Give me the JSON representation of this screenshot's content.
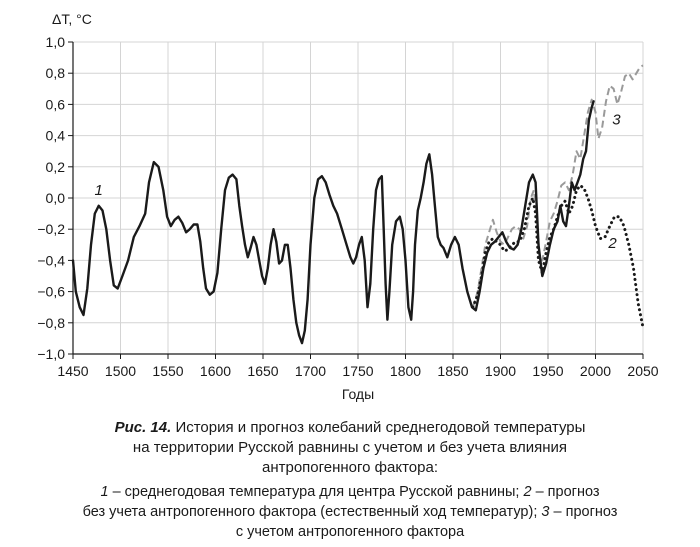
{
  "chart_data": {
    "type": "line",
    "ylabel": "ΔT, °C",
    "xlabel": "Годы",
    "xlim": [
      1450,
      2050
    ],
    "ylim": [
      -1.0,
      1.0
    ],
    "x_ticks": [
      "1450",
      "1500",
      "1550",
      "1600",
      "1650",
      "1700",
      "1750",
      "1800",
      "1850",
      "1900",
      "1950",
      "2000",
      "2050"
    ],
    "y_ticks": [
      "1,0",
      "0,8",
      "0,6",
      "0,4",
      "0,2",
      "0,0",
      "−0,2",
      "−0,4",
      "−0,6",
      "−0,8",
      "−1,0"
    ],
    "series": [
      {
        "label": "1",
        "style": "solid",
        "color": "#1a1a1a",
        "points": [
          [
            1450,
            -0.4
          ],
          [
            1453,
            -0.6
          ],
          [
            1457,
            -0.7
          ],
          [
            1461,
            -0.75
          ],
          [
            1465,
            -0.58
          ],
          [
            1469,
            -0.3
          ],
          [
            1473,
            -0.1
          ],
          [
            1477,
            -0.05
          ],
          [
            1481,
            -0.08
          ],
          [
            1485,
            -0.2
          ],
          [
            1489,
            -0.4
          ],
          [
            1493,
            -0.56
          ],
          [
            1497,
            -0.58
          ],
          [
            1502,
            -0.5
          ],
          [
            1508,
            -0.4
          ],
          [
            1514,
            -0.25
          ],
          [
            1520,
            -0.18
          ],
          [
            1526,
            -0.1
          ],
          [
            1530,
            0.1
          ],
          [
            1535,
            0.23
          ],
          [
            1540,
            0.2
          ],
          [
            1545,
            0.05
          ],
          [
            1549,
            -0.12
          ],
          [
            1553,
            -0.18
          ],
          [
            1557,
            -0.14
          ],
          [
            1561,
            -0.12
          ],
          [
            1565,
            -0.16
          ],
          [
            1569,
            -0.22
          ],
          [
            1573,
            -0.2
          ],
          [
            1577,
            -0.17
          ],
          [
            1581,
            -0.17
          ],
          [
            1584,
            -0.28
          ],
          [
            1587,
            -0.45
          ],
          [
            1590,
            -0.58
          ],
          [
            1594,
            -0.62
          ],
          [
            1598,
            -0.6
          ],
          [
            1602,
            -0.48
          ],
          [
            1606,
            -0.2
          ],
          [
            1610,
            0.05
          ],
          [
            1614,
            0.13
          ],
          [
            1618,
            0.15
          ],
          [
            1622,
            0.12
          ],
          [
            1625,
            -0.05
          ],
          [
            1628,
            -0.18
          ],
          [
            1631,
            -0.3
          ],
          [
            1634,
            -0.38
          ],
          [
            1637,
            -0.32
          ],
          [
            1640,
            -0.25
          ],
          [
            1643,
            -0.3
          ],
          [
            1646,
            -0.4
          ],
          [
            1649,
            -0.5
          ],
          [
            1652,
            -0.55
          ],
          [
            1655,
            -0.45
          ],
          [
            1658,
            -0.3
          ],
          [
            1661,
            -0.2
          ],
          [
            1664,
            -0.28
          ],
          [
            1667,
            -0.42
          ],
          [
            1670,
            -0.4
          ],
          [
            1673,
            -0.3
          ],
          [
            1676,
            -0.3
          ],
          [
            1679,
            -0.45
          ],
          [
            1682,
            -0.65
          ],
          [
            1685,
            -0.8
          ],
          [
            1688,
            -0.88
          ],
          [
            1691,
            -0.93
          ],
          [
            1694,
            -0.85
          ],
          [
            1697,
            -0.65
          ],
          [
            1700,
            -0.3
          ],
          [
            1704,
            0.0
          ],
          [
            1708,
            0.12
          ],
          [
            1712,
            0.14
          ],
          [
            1716,
            0.1
          ],
          [
            1720,
            0.02
          ],
          [
            1724,
            -0.05
          ],
          [
            1728,
            -0.1
          ],
          [
            1733,
            -0.2
          ],
          [
            1738,
            -0.3
          ],
          [
            1742,
            -0.38
          ],
          [
            1745,
            -0.42
          ],
          [
            1748,
            -0.38
          ],
          [
            1751,
            -0.3
          ],
          [
            1754,
            -0.25
          ],
          [
            1757,
            -0.4
          ],
          [
            1760,
            -0.7
          ],
          [
            1763,
            -0.55
          ],
          [
            1766,
            -0.2
          ],
          [
            1769,
            0.05
          ],
          [
            1772,
            0.12
          ],
          [
            1775,
            0.14
          ],
          [
            1777,
            -0.2
          ],
          [
            1779,
            -0.55
          ],
          [
            1781,
            -0.78
          ],
          [
            1783,
            -0.6
          ],
          [
            1786,
            -0.3
          ],
          [
            1790,
            -0.15
          ],
          [
            1794,
            -0.12
          ],
          [
            1797,
            -0.2
          ],
          [
            1800,
            -0.4
          ],
          [
            1803,
            -0.7
          ],
          [
            1806,
            -0.78
          ],
          [
            1808,
            -0.6
          ],
          [
            1810,
            -0.3
          ],
          [
            1813,
            -0.08
          ],
          [
            1816,
            0.0
          ],
          [
            1819,
            0.1
          ],
          [
            1822,
            0.22
          ],
          [
            1825,
            0.28
          ],
          [
            1828,
            0.15
          ],
          [
            1831,
            -0.05
          ],
          [
            1834,
            -0.25
          ],
          [
            1837,
            -0.3
          ],
          [
            1840,
            -0.32
          ],
          [
            1844,
            -0.38
          ],
          [
            1848,
            -0.3
          ],
          [
            1852,
            -0.25
          ],
          [
            1856,
            -0.3
          ],
          [
            1860,
            -0.45
          ],
          [
            1865,
            -0.6
          ],
          [
            1870,
            -0.7
          ],
          [
            1874,
            -0.72
          ],
          [
            1878,
            -0.6
          ],
          [
            1882,
            -0.45
          ],
          [
            1886,
            -0.35
          ],
          [
            1890,
            -0.3
          ],
          [
            1894,
            -0.28
          ],
          [
            1898,
            -0.25
          ],
          [
            1902,
            -0.22
          ],
          [
            1906,
            -0.28
          ],
          [
            1910,
            -0.32
          ],
          [
            1914,
            -0.33
          ],
          [
            1918,
            -0.3
          ],
          [
            1922,
            -0.2
          ],
          [
            1926,
            -0.05
          ],
          [
            1930,
            0.1
          ],
          [
            1934,
            0.15
          ],
          [
            1937,
            0.1
          ],
          [
            1940,
            -0.3
          ],
          [
            1944,
            -0.5
          ],
          [
            1948,
            -0.42
          ],
          [
            1952,
            -0.3
          ],
          [
            1956,
            -0.2
          ],
          [
            1960,
            -0.15
          ],
          [
            1963,
            -0.05
          ],
          [
            1966,
            -0.15
          ],
          [
            1969,
            -0.18
          ],
          [
            1972,
            -0.05
          ],
          [
            1975,
            0.1
          ],
          [
            1978,
            0.05
          ],
          [
            1981,
            0.1
          ],
          [
            1984,
            0.15
          ],
          [
            1987,
            0.25
          ],
          [
            1990,
            0.3
          ],
          [
            1993,
            0.5
          ],
          [
            1996,
            0.58
          ],
          [
            1998,
            0.62
          ]
        ]
      },
      {
        "label": "2",
        "style": "dotted",
        "color": "#1a1a1a",
        "points": [
          [
            1871,
            -0.7
          ],
          [
            1876,
            -0.62
          ],
          [
            1880,
            -0.5
          ],
          [
            1884,
            -0.35
          ],
          [
            1888,
            -0.28
          ],
          [
            1892,
            -0.26
          ],
          [
            1896,
            -0.28
          ],
          [
            1900,
            -0.3
          ],
          [
            1904,
            -0.34
          ],
          [
            1908,
            -0.33
          ],
          [
            1912,
            -0.3
          ],
          [
            1916,
            -0.28
          ],
          [
            1920,
            -0.28
          ],
          [
            1925,
            -0.2
          ],
          [
            1930,
            -0.05
          ],
          [
            1934,
            0.0
          ],
          [
            1937,
            -0.1
          ],
          [
            1940,
            -0.4
          ],
          [
            1944,
            -0.48
          ],
          [
            1948,
            -0.35
          ],
          [
            1952,
            -0.25
          ],
          [
            1956,
            -0.2
          ],
          [
            1960,
            -0.12
          ],
          [
            1964,
            -0.05
          ],
          [
            1968,
            -0.02
          ],
          [
            1972,
            -0.1
          ],
          [
            1976,
            -0.05
          ],
          [
            1980,
            0.05
          ],
          [
            1984,
            0.08
          ],
          [
            1988,
            0.06
          ],
          [
            1992,
            0.0
          ],
          [
            1996,
            -0.08
          ],
          [
            2000,
            -0.18
          ],
          [
            2005,
            -0.26
          ],
          [
            2010,
            -0.25
          ],
          [
            2015,
            -0.18
          ],
          [
            2020,
            -0.12
          ],
          [
            2025,
            -0.12
          ],
          [
            2030,
            -0.18
          ],
          [
            2035,
            -0.3
          ],
          [
            2040,
            -0.45
          ],
          [
            2045,
            -0.68
          ],
          [
            2050,
            -0.83
          ]
        ]
      },
      {
        "label": "3",
        "style": "dashed",
        "color": "#9a9a9a",
        "points": [
          [
            1871,
            -0.7
          ],
          [
            1876,
            -0.6
          ],
          [
            1880,
            -0.45
          ],
          [
            1884,
            -0.3
          ],
          [
            1888,
            -0.22
          ],
          [
            1892,
            -0.14
          ],
          [
            1896,
            -0.22
          ],
          [
            1900,
            -0.28
          ],
          [
            1904,
            -0.3
          ],
          [
            1908,
            -0.25
          ],
          [
            1912,
            -0.2
          ],
          [
            1916,
            -0.18
          ],
          [
            1920,
            -0.2
          ],
          [
            1924,
            -0.26
          ],
          [
            1928,
            -0.18
          ],
          [
            1932,
            0.0
          ],
          [
            1935,
            0.05
          ],
          [
            1938,
            -0.1
          ],
          [
            1941,
            -0.38
          ],
          [
            1944,
            -0.4
          ],
          [
            1948,
            -0.28
          ],
          [
            1952,
            -0.15
          ],
          [
            1956,
            -0.1
          ],
          [
            1960,
            -0.02
          ],
          [
            1964,
            0.08
          ],
          [
            1968,
            0.1
          ],
          [
            1972,
            0.05
          ],
          [
            1976,
            0.15
          ],
          [
            1980,
            0.3
          ],
          [
            1984,
            0.25
          ],
          [
            1988,
            0.4
          ],
          [
            1992,
            0.55
          ],
          [
            1996,
            0.63
          ],
          [
            2000,
            0.55
          ],
          [
            2003,
            0.38
          ],
          [
            2007,
            0.45
          ],
          [
            2011,
            0.62
          ],
          [
            2015,
            0.72
          ],
          [
            2019,
            0.7
          ],
          [
            2023,
            0.6
          ],
          [
            2027,
            0.68
          ],
          [
            2031,
            0.78
          ],
          [
            2035,
            0.8
          ],
          [
            2039,
            0.76
          ],
          [
            2043,
            0.8
          ],
          [
            2047,
            0.84
          ],
          [
            2050,
            0.85
          ]
        ]
      }
    ]
  },
  "caption": {
    "figure": "Рис. 14.",
    "title_line1": " История и прогноз колебаний среднегодовой температуры",
    "title_line2": "на территории Русской равнины с учетом и без учета влияния",
    "title_line3": "антропогенного фактора:",
    "legend_1_num": "1",
    "legend_1_text": " – среднегодовая температура для центра Русской равнины; ",
    "legend_2_num": "2",
    "legend_2_text": " – прогноз",
    "legend_line2": "без учета антропогенного фактора (естественный ход температур); ",
    "legend_3_num": "3",
    "legend_3_text": " – прогноз",
    "legend_line3": "с учетом антропогенного фактора"
  }
}
